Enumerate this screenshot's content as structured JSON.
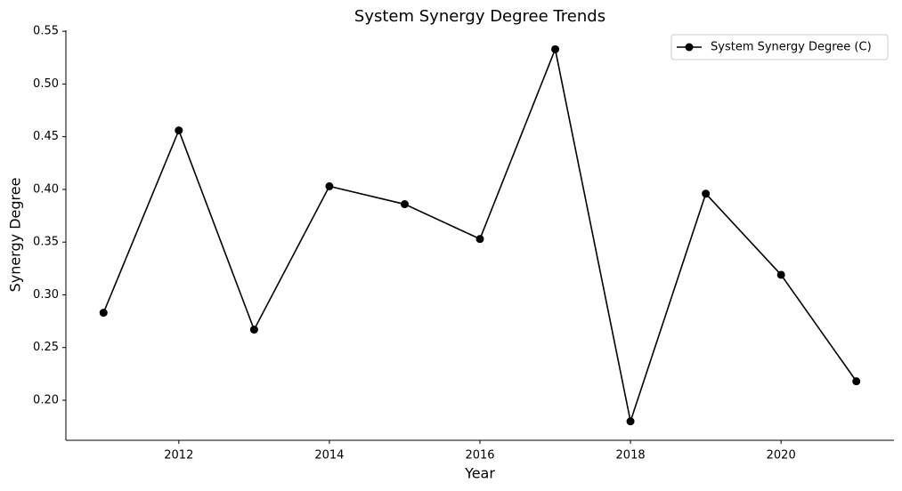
{
  "chart_data": {
    "type": "line",
    "title": "System Synergy Degree Trends",
    "x_label": "Year",
    "y_label": "Synergy Degree",
    "x": [
      2011,
      2012,
      2013,
      2014,
      2015,
      2016,
      2017,
      2018,
      2019,
      2020,
      2021
    ],
    "series": [
      {
        "name": "System Synergy Degree (C)",
        "color": "#000000",
        "values": [
          0.283,
          0.456,
          0.267,
          0.403,
          0.386,
          0.353,
          0.533,
          0.18,
          0.396,
          0.319,
          0.218
        ]
      }
    ],
    "xlim": [
      2010.5,
      2021.5
    ],
    "xticks": [
      2012,
      2014,
      2016,
      2018,
      2020
    ],
    "ylim": [
      0.162,
      0.551
    ],
    "yticks": [
      {
        "value": 0.2,
        "label": "0.20"
      },
      0.25,
      {
        "value": 0.3,
        "label": "0.30"
      },
      0.35,
      {
        "value": 0.4,
        "label": "0.40"
      },
      0.45,
      {
        "value": 0.5,
        "label": "0.50"
      },
      0.55
    ],
    "grid": false,
    "legend": "upper right"
  }
}
